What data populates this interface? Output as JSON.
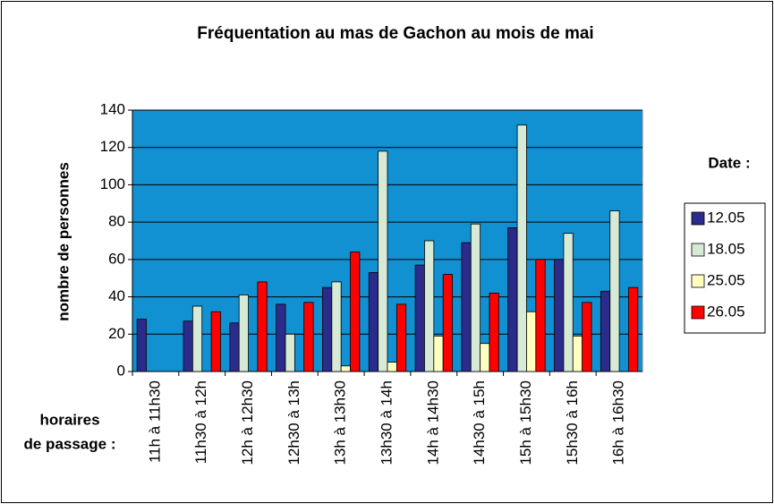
{
  "chart_data": {
    "type": "bar",
    "title": "Fréquentation au mas de Gachon au mois de mai",
    "ylabel": "nombre de personnes",
    "xlabel": [
      "horaires",
      "de passage :"
    ],
    "legend_title": "Date :",
    "legend": "right",
    "grid": true,
    "background": "#1190d2",
    "categories": [
      "11h à 11h30",
      "11h30 à 12h",
      "12h à 12h30",
      "12h30 à 13h",
      "13h à 13h30",
      "13h30 à 14h",
      "14h à 14h30",
      "14h30 à 15h",
      "15h à 15h30",
      "15h30 à 16h",
      "16h à 16h30"
    ],
    "series": [
      {
        "name": "12.05",
        "color": "#2b2b8c",
        "values": [
          28,
          27,
          26,
          36,
          45,
          53,
          57,
          69,
          77,
          60,
          43
        ]
      },
      {
        "name": "18.05",
        "color": "#d6ead6",
        "values": [
          0,
          35,
          41,
          20,
          48,
          118,
          70,
          79,
          132,
          74,
          86
        ]
      },
      {
        "name": "25.05",
        "color": "#ffffc0",
        "values": [
          0,
          0,
          0,
          0,
          3,
          5,
          19,
          15,
          32,
          19,
          0
        ]
      },
      {
        "name": "26.05",
        "color": "#ff0000",
        "values": [
          0,
          32,
          48,
          37,
          64,
          36,
          52,
          42,
          60,
          37,
          45
        ]
      }
    ],
    "ylim": [
      0,
      140
    ],
    "yticks": [
      0,
      20,
      40,
      60,
      80,
      100,
      120,
      140
    ]
  }
}
